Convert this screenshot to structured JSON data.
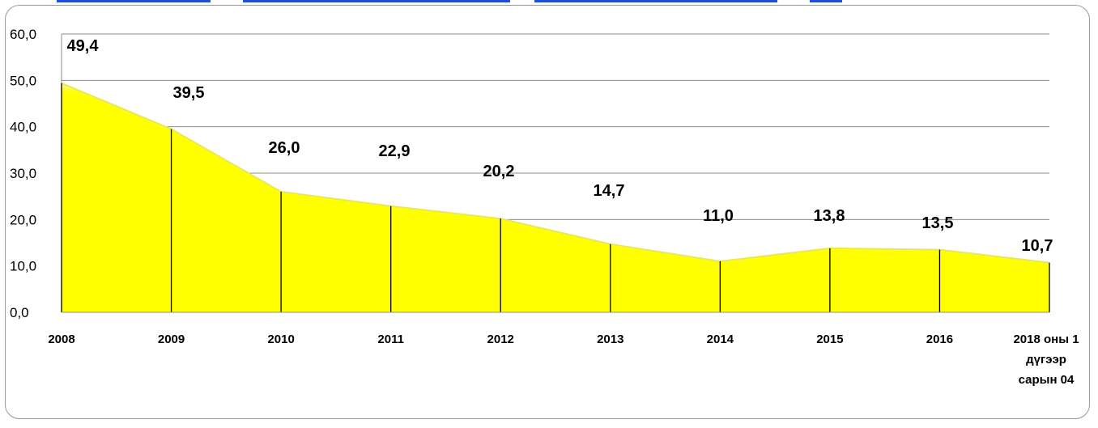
{
  "chart_data": {
    "type": "area",
    "categories": [
      "2008",
      "2009",
      "2010",
      "2011",
      "2012",
      "2013",
      "2014",
      "2015",
      "2016",
      "2018 оны 1 дүгээр сарын 04"
    ],
    "category_lines": [
      [
        "2008"
      ],
      [
        "2009"
      ],
      [
        "2010"
      ],
      [
        "2011"
      ],
      [
        "2012"
      ],
      [
        "2013"
      ],
      [
        "2014"
      ],
      [
        "2015"
      ],
      [
        "2016"
      ],
      [
        "2018 оны 1",
        "дүгээр",
        "сарын 04"
      ]
    ],
    "values": [
      49.4,
      39.5,
      26.0,
      22.9,
      20.2,
      14.7,
      11.0,
      13.8,
      13.5,
      10.7
    ],
    "data_labels": [
      "49,4",
      "39,5",
      "26,0",
      "22,9",
      "20,2",
      "14,7",
      "11,0",
      "13,8",
      "13,5",
      "10,7"
    ],
    "y_ticks": [
      0,
      10,
      20,
      30,
      40,
      50,
      60
    ],
    "y_tick_labels": [
      "0,0",
      "10,0",
      "20,0",
      "30,0",
      "40,0",
      "50,0",
      "60,0"
    ],
    "ylim": [
      0,
      60
    ],
    "grid": "horizontal",
    "legend": "none",
    "colors": {
      "fill": "#ffff00",
      "fill_top": "#f4f4a0",
      "gridline": "#8c8c8c",
      "drop_line": "#000000",
      "title_color": "#1f4ed8"
    }
  }
}
